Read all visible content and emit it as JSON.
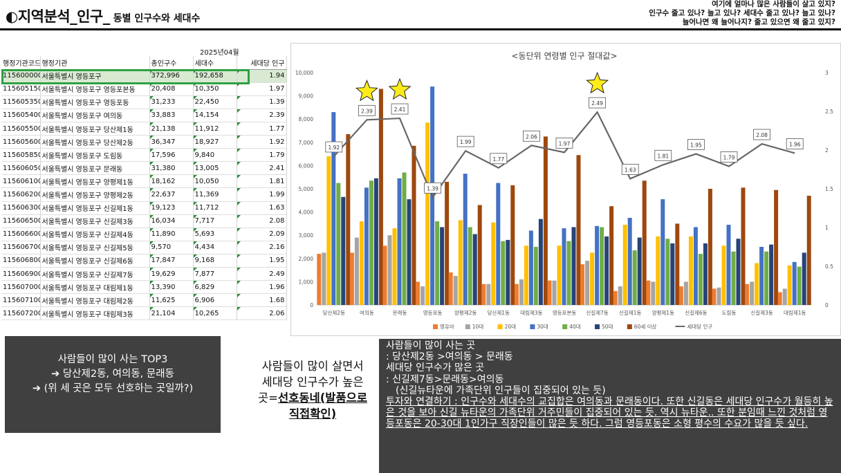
{
  "header": {
    "title_main": "◐지역분석_인구_",
    "title_sub": "동별 인구수와 세대수",
    "questions": [
      "여기에 얼마나 많은 사람들이 살고 있지?",
      "인구수 줄고 있나? 늘고 있나? 세대수 줄고 있나? 늘고 있나?",
      "늘어나면 왜 늘어나지? 줄고 있으면 왜 줄고 있지?"
    ]
  },
  "sheet": {
    "period": "2025년04월",
    "headers": [
      "행정기관코드",
      "행정기관",
      "총인구수",
      "세대수",
      "세대당 인구"
    ],
    "rows": [
      [
        "1156000000",
        "서울특별시 영등포구",
        "372,996",
        "192,658",
        "1.94"
      ],
      [
        "1156051500",
        "서울특별시 영등포구 영등포본동",
        "20,408",
        "10,350",
        "1.97"
      ],
      [
        "1156053500",
        "서울특별시 영등포구 영등포동",
        "31,233",
        "22,450",
        "1.39"
      ],
      [
        "1156054000",
        "서울특별시 영등포구 여의동",
        "33,883",
        "14,154",
        "2.39"
      ],
      [
        "1156055000",
        "서울특별시 영등포구 당산제1동",
        "21,138",
        "11,912",
        "1.77"
      ],
      [
        "1156056000",
        "서울특별시 영등포구 당산제2동",
        "36,347",
        "18,927",
        "1.92"
      ],
      [
        "1156058500",
        "서울특별시 영등포구 도림동",
        "17,596",
        "9,840",
        "1.79"
      ],
      [
        "1156060500",
        "서울특별시 영등포구 문래동",
        "31,380",
        "13,005",
        "2.41"
      ],
      [
        "1156061000",
        "서울특별시 영등포구 양평제1동",
        "18,162",
        "10,050",
        "1.81"
      ],
      [
        "1156062000",
        "서울특별시 영등포구 양평제2동",
        "22,637",
        "11,369",
        "1.99"
      ],
      [
        "1156063000",
        "서울특별시 영등포구 신길제1동",
        "19,123",
        "11,712",
        "1.63"
      ],
      [
        "1156065000",
        "서울특별시 영등포구 신길제3동",
        "16,034",
        "7,717",
        "2.08"
      ],
      [
        "1156066000",
        "서울특별시 영등포구 신길제4동",
        "11,890",
        "5,693",
        "2.09"
      ],
      [
        "1156067000",
        "서울특별시 영등포구 신길제5동",
        "9,570",
        "4,434",
        "2.16"
      ],
      [
        "1156068000",
        "서울특별시 영등포구 신길제6동",
        "17,847",
        "9,168",
        "1.95"
      ],
      [
        "1156069000",
        "서울특별시 영등포구 신길제7동",
        "19,629",
        "7,877",
        "2.49"
      ],
      [
        "1156070000",
        "서울특별시 영등포구 대림제1동",
        "13,390",
        "6,829",
        "1.96"
      ],
      [
        "1156071000",
        "서울특별시 영등포구 대림제2동",
        "11,625",
        "6,906",
        "1.68"
      ],
      [
        "1156072000",
        "서울특별시 영등포구 대림제3동",
        "21,104",
        "10,265",
        "2.06"
      ]
    ]
  },
  "chart_data": {
    "type": "bar",
    "title": "<동단위 연령별 인구 절대값>",
    "categories": [
      "당산제2동",
      "여의동",
      "문래동",
      "영등포동",
      "양평제2동",
      "당산제1동",
      "대림제3동",
      "영등포본동",
      "신길제7동",
      "신길제1동",
      "양평제1동",
      "신길제6동",
      "도림동",
      "신길제3동",
      "대림제1동"
    ],
    "series": [
      {
        "name": "영유아",
        "color": "#ed7d31",
        "values": [
          2200,
          2250,
          2550,
          1000,
          1400,
          900,
          900,
          1050,
          1750,
          600,
          1050,
          800,
          700,
          900,
          550
        ]
      },
      {
        "name": "10대",
        "color": "#a5a5a5",
        "values": [
          2250,
          2900,
          3000,
          800,
          1250,
          900,
          1100,
          1050,
          1900,
          800,
          1000,
          1000,
          750,
          1000,
          700
        ]
      },
      {
        "name": "20대",
        "color": "#ffc000",
        "values": [
          6400,
          3600,
          3300,
          7850,
          3650,
          3550,
          2550,
          2550,
          2250,
          3450,
          2950,
          2950,
          2550,
          1800,
          1700
        ]
      },
      {
        "name": "30대",
        "color": "#4472c4",
        "values": [
          8300,
          5050,
          5450,
          9400,
          5650,
          5250,
          3200,
          3300,
          3400,
          3750,
          4550,
          3350,
          3450,
          2500,
          1850
        ]
      },
      {
        "name": "40대",
        "color": "#70ad47",
        "values": [
          5250,
          5350,
          5700,
          3600,
          3350,
          2750,
          2500,
          2750,
          3350,
          2350,
          2850,
          2200,
          2300,
          2300,
          1650
        ]
      },
      {
        "name": "50대",
        "color": "#264478",
        "values": [
          4650,
          5450,
          4550,
          3350,
          3050,
          2800,
          3700,
          3350,
          2950,
          2900,
          2650,
          2650,
          2850,
          2600,
          2250
        ]
      },
      {
        "name": "60세 이상",
        "color": "#9e480e",
        "values": [
          7350,
          9300,
          6850,
          5300,
          4300,
          5150,
          7250,
          6450,
          4250,
          5350,
          3500,
          5000,
          5050,
          4950,
          4700
        ]
      }
    ],
    "line": {
      "name": "세대당 인구",
      "color": "#666666",
      "values": [
        1.92,
        2.39,
        2.41,
        1.39,
        1.99,
        1.77,
        2.06,
        1.97,
        2.49,
        1.63,
        1.81,
        1.95,
        1.79,
        2.08,
        1.96
      ]
    },
    "ylim": [
      0,
      10000
    ],
    "y_ticks": [
      "0",
      "1,000",
      "2,000",
      "3,000",
      "4,000",
      "5,000",
      "6,000",
      "7,000",
      "8,000",
      "9,000",
      "10,000"
    ],
    "y2lim": [
      0,
      3
    ],
    "y2_ticks": [
      "0",
      "0.5",
      "1",
      "1.5",
      "2",
      "2.5",
      "3"
    ],
    "stars_on": [
      "여의동",
      "문래동",
      "신길제7동"
    ],
    "legend_position": "bottom"
  },
  "notes": {
    "box1": {
      "line1": "사람들이 많이 사는 TOP3",
      "line2": "➔ 당산제2동, 여의동, 문래동",
      "line3": "➔ (위 세 곳은 모두 선호하는 곳일까?)"
    },
    "middle": {
      "text": "사람들이 많이 살면서 세대당 인구수가 높은곳=",
      "bold": "선호동네(발품으로 직접확인)"
    },
    "box2": {
      "l1": "사람들이 많이 사는 곳",
      "l2": ": 당산제2동 >여의동 > 문래동",
      "l3": "세대당 인구수가 많은 곳",
      "l4": ": 신길제7동>문래동>여의동",
      "l5": "(신길뉴타운에 가족단위 인구들이 집중되어 있는 듯)",
      "l6": "투자와 연결하기 : 인구수와 세대수의 교집합은 여의동과 문래동이다. 또한 신길동은 세대당 인구수가 월등히 높은 것을 보아 신길 뉴타운의 가족단위 거주민들이 집중되어 있는 듯. 역시 뉴타운.. 또한 분임때 느낀 것처럼 영등포동은 20-30대 1인가구 직장인들이 많은 듯 하다. 그럼 영등포동은 소형 평수의 수요가 많을 듯 싶다."
    }
  }
}
